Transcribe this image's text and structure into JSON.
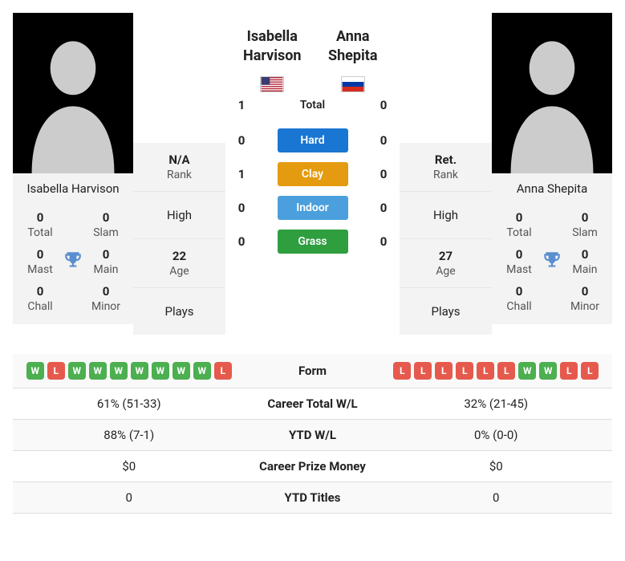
{
  "colors": {
    "hard": "#1976d2",
    "clay": "#e49b0f",
    "indoor": "#4a9fdc",
    "grass": "#2e9e3f",
    "win": "#4caf50",
    "loss": "#e65a4d"
  },
  "player1": {
    "name": "Isabella Harvison",
    "firstName": "Isabella",
    "lastName": "Harvison",
    "flag": "us",
    "rank": "N/A",
    "high": "",
    "age": "22",
    "plays": "",
    "titles": {
      "total": "0",
      "slam": "0",
      "mast": "0",
      "main": "0",
      "chall": "0",
      "minor": "0"
    }
  },
  "player2": {
    "name": "Anna Shepita",
    "firstName": "Anna",
    "lastName": "Shepita",
    "flag": "ru",
    "rank": "Ret.",
    "high": "",
    "age": "27",
    "plays": "",
    "titles": {
      "total": "0",
      "slam": "0",
      "mast": "0",
      "main": "0",
      "chall": "0",
      "minor": "0"
    }
  },
  "h2h": {
    "total": {
      "label": "Total",
      "p1": "1",
      "p2": "0"
    },
    "surfaces": [
      {
        "key": "hard",
        "label": "Hard",
        "p1": "0",
        "p2": "0"
      },
      {
        "key": "clay",
        "label": "Clay",
        "p1": "1",
        "p2": "0"
      },
      {
        "key": "indoor",
        "label": "Indoor",
        "p1": "0",
        "p2": "0"
      },
      {
        "key": "grass",
        "label": "Grass",
        "p1": "0",
        "p2": "0"
      }
    ]
  },
  "labels": {
    "rank": "Rank",
    "high": "High",
    "age": "Age",
    "plays": "Plays",
    "total": "Total",
    "slam": "Slam",
    "mast": "Mast",
    "main": "Main",
    "chall": "Chall",
    "minor": "Minor"
  },
  "compare": [
    {
      "label": "Form",
      "p1_form": [
        "W",
        "L",
        "W",
        "W",
        "W",
        "W",
        "W",
        "W",
        "W",
        "L"
      ],
      "p2_form": [
        "L",
        "L",
        "L",
        "L",
        "L",
        "L",
        "W",
        "W",
        "L",
        "L"
      ]
    },
    {
      "label": "Career Total W/L",
      "p1": "61% (51-33)",
      "p2": "32% (21-45)"
    },
    {
      "label": "YTD W/L",
      "p1": "88% (7-1)",
      "p2": "0% (0-0)"
    },
    {
      "label": "Career Prize Money",
      "p1": "$0",
      "p2": "$0"
    },
    {
      "label": "YTD Titles",
      "p1": "0",
      "p2": "0"
    }
  ]
}
